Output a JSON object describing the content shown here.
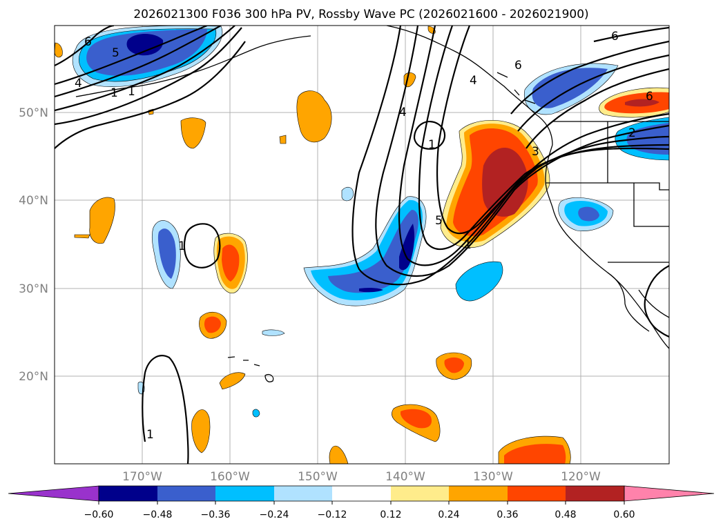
{
  "title": "2026021300 F036 300 hPa PV, Rossby Wave PC (2026021600 - 2026021900)",
  "axes": {
    "lat_labels": [
      "50°N",
      "40°N",
      "30°N",
      "20°N"
    ],
    "lon_labels": [
      "170°W",
      "160°W",
      "150°W",
      "140°W",
      "130°W",
      "120°W"
    ]
  },
  "colorbar": {
    "tick_labels": [
      "−0.60",
      "−0.48",
      "−0.36",
      "−0.24",
      "−0.12",
      "0.12",
      "0.24",
      "0.36",
      "0.48",
      "0.60"
    ],
    "colors": [
      "#9932cc",
      "#00008b",
      "#3a5fcd",
      "#00bfff",
      "#b0e2ff",
      "#ffffff",
      "#ffec8b",
      "#ffa500",
      "#ff4500",
      "#b22222",
      "#ff82ab"
    ]
  },
  "contour_labels": [
    "6",
    "5",
    "4",
    "6",
    "4",
    "4",
    "5",
    "3",
    "6",
    "6",
    "2",
    "1",
    "1",
    "1",
    "1",
    "1",
    "1"
  ],
  "colors": {
    "neg1": "#b0e2ff",
    "neg2": "#00bfff",
    "neg3": "#3a5fcd",
    "neg4": "#00008b",
    "pos1": "#ffec8b",
    "pos2": "#ffa500",
    "pos3": "#ff4500",
    "pos4": "#b22222"
  }
}
